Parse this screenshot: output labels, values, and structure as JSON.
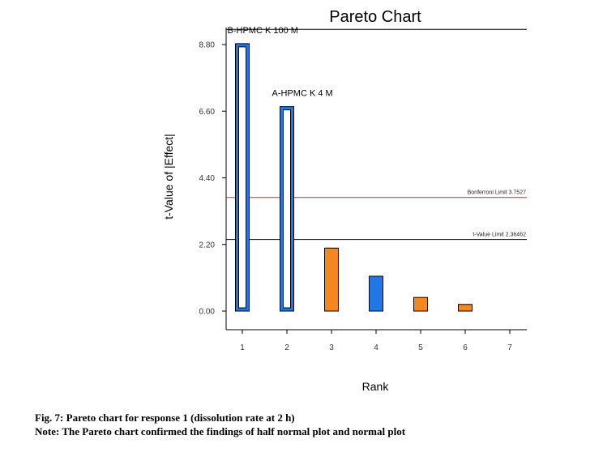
{
  "chart_data": {
    "type": "bar",
    "title": "Pareto Chart",
    "xlabel": "Rank",
    "ylabel": "t-Value of |Effect|",
    "x_ticks": [
      "1",
      "2",
      "3",
      "4",
      "5",
      "6",
      "7"
    ],
    "y_ticks": [
      "0.00",
      "2.20",
      "4.40",
      "6.60",
      "8.80"
    ],
    "ylim": [
      -0.6,
      9.4
    ],
    "xlim": [
      0.5,
      7
    ],
    "bars": [
      {
        "rank": 1,
        "value": 8.83,
        "color": "#1f77e8",
        "style": "outlined",
        "label": "B-HPMC K 100 M"
      },
      {
        "rank": 2,
        "value": 6.75,
        "color": "#1f77e8",
        "style": "outlined",
        "label": "A-HPMC K 4 M"
      },
      {
        "rank": 3,
        "value": 2.08,
        "color": "#f5871f",
        "style": "filled",
        "label": ""
      },
      {
        "rank": 4,
        "value": 1.15,
        "color": "#1f77e8",
        "style": "filled",
        "label": ""
      },
      {
        "rank": 5,
        "value": 0.45,
        "color": "#f5871f",
        "style": "filled",
        "label": ""
      },
      {
        "rank": 6,
        "value": 0.22,
        "color": "#f5871f",
        "style": "filled",
        "label": ""
      }
    ],
    "limits": [
      {
        "label": "Bonferroni Limit 3.7527",
        "value": 3.7527,
        "color": "#d62728"
      },
      {
        "label": "t-Value Limit 2.36462",
        "value": 2.36462,
        "color": "#000000"
      }
    ],
    "top_line_value": 9.3,
    "grid": false
  },
  "caption": {
    "figure": "Fig. 7: Pareto chart for response 1 (dissolution rate at 2 h)",
    "note": "Note: The Pareto chart confirmed the findings of half normal plot and normal plot"
  }
}
